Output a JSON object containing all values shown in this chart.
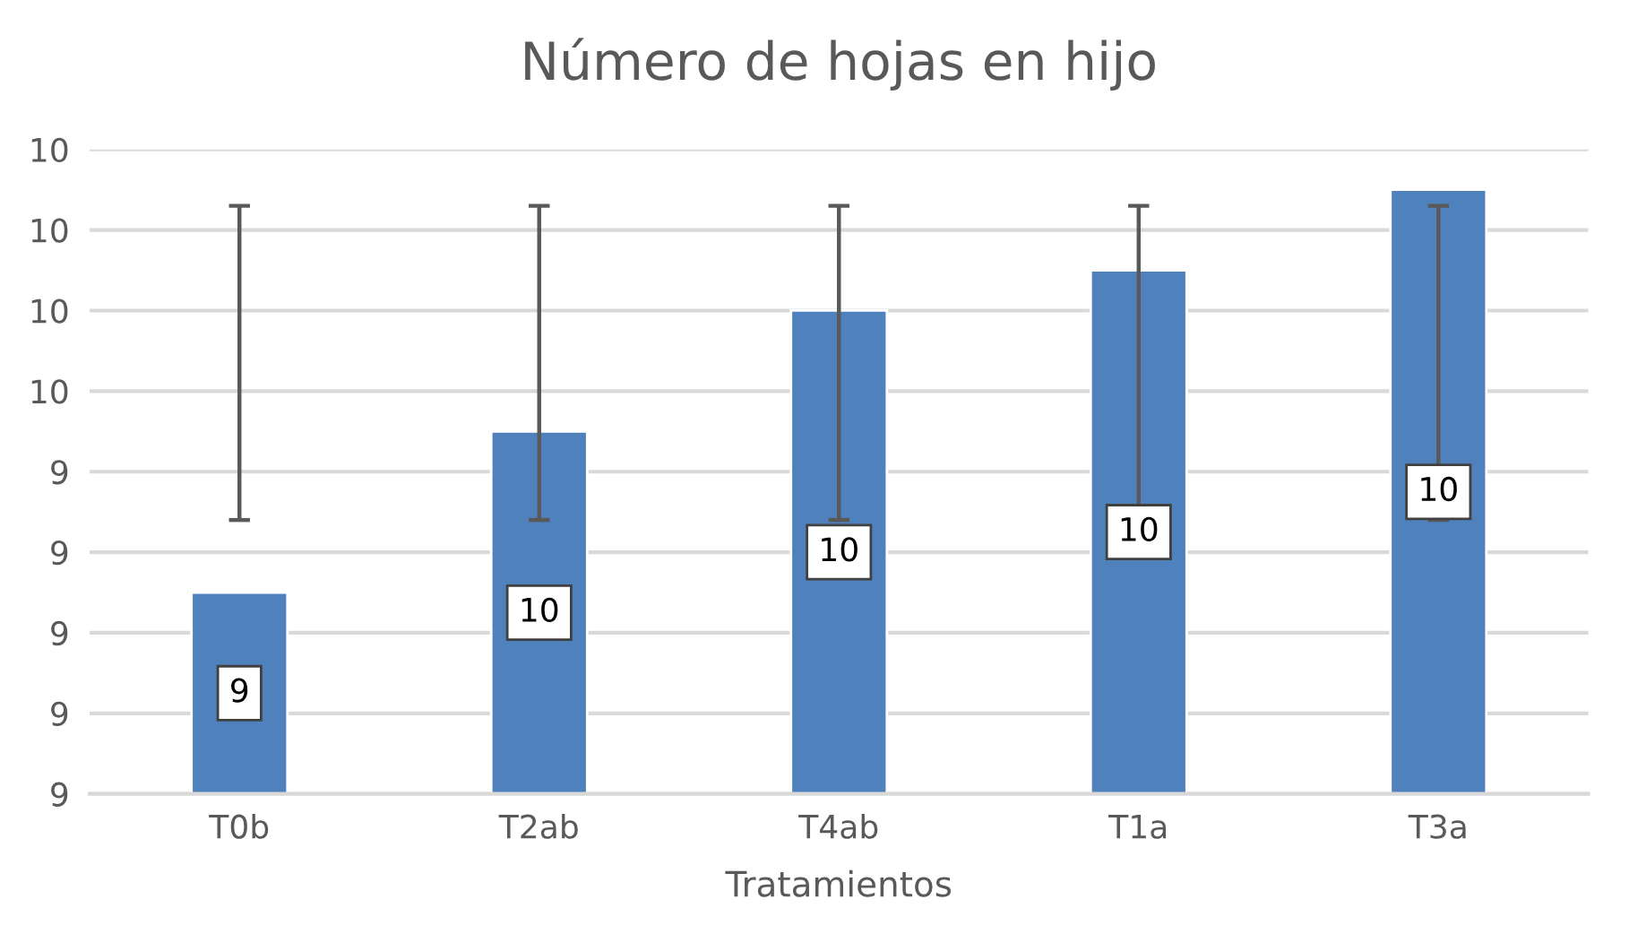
{
  "chart_data": {
    "type": "bar",
    "title": "Número de hojas en hijo",
    "xlabel": "Tratamientos",
    "categories": [
      "T0b",
      "T2ab",
      "T4ab",
      "T1a",
      "T3a"
    ],
    "values": [
      9.3,
      9.5,
      9.65,
      9.7,
      9.8
    ],
    "color": "#4f81bd",
    "errors": [
      [
        9.39,
        9.78
      ],
      [
        9.39,
        9.78
      ],
      [
        9.39,
        9.78
      ],
      [
        9.39,
        9.78
      ],
      [
        9.39,
        9.78
      ]
    ],
    "value_labels": [
      "9",
      "10",
      "10",
      "10",
      "10"
    ],
    "ylim": [
      9.05,
      9.85
    ],
    "yticks": [
      {
        "value": 9.05,
        "label": "9"
      },
      {
        "value": 9.15,
        "label": "9"
      },
      {
        "value": 9.25,
        "label": "9"
      },
      {
        "value": 9.35,
        "label": "9"
      },
      {
        "value": 9.45,
        "label": "9"
      },
      {
        "value": 9.55,
        "label": "10"
      },
      {
        "value": 9.65,
        "label": "10"
      },
      {
        "value": 9.75,
        "label": "10"
      },
      {
        "value": 9.85,
        "label": "10"
      }
    ],
    "grid": "y",
    "legend": false
  }
}
